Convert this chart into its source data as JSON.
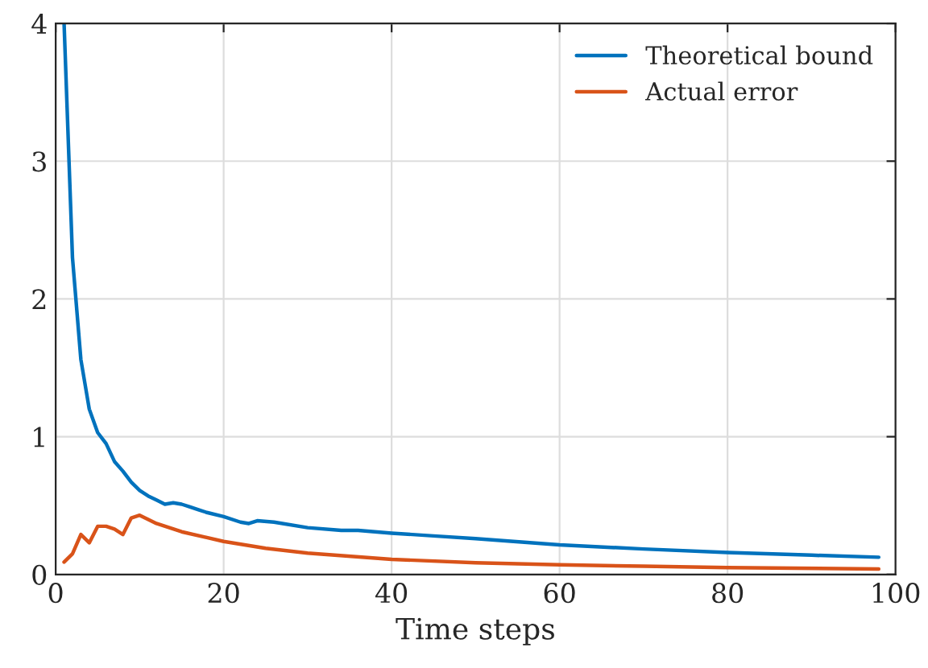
{
  "chart_data": {
    "type": "line",
    "xlabel": "Time steps",
    "xlim": [
      0,
      100
    ],
    "xticks": [
      0,
      20,
      40,
      60,
      80,
      100
    ],
    "ylim": [
      0,
      4
    ],
    "yticks": [
      0,
      1,
      2,
      3,
      4
    ],
    "grid": true,
    "legend": "top right",
    "line_style": "solid",
    "marker": "none",
    "series": [
      {
        "name": "Theoretical bound",
        "color": "#0072bd",
        "x": [
          1,
          2,
          3,
          4,
          5,
          6,
          7,
          8,
          9,
          10,
          11,
          12,
          13,
          14,
          15,
          16,
          17,
          18,
          20,
          22,
          23,
          24,
          26,
          30,
          34,
          36,
          40,
          45,
          50,
          60,
          70,
          80,
          90,
          98
        ],
        "values": [
          4,
          2.3,
          1.56,
          1.2,
          1.03,
          0.95,
          0.82,
          0.75,
          0.67,
          0.61,
          0.57,
          0.54,
          0.51,
          0.52,
          0.51,
          0.49,
          0.47,
          0.45,
          0.42,
          0.38,
          0.37,
          0.39,
          0.38,
          0.34,
          0.32,
          0.32,
          0.3,
          0.28,
          0.26,
          0.215,
          0.185,
          0.16,
          0.14,
          0.125
        ]
      },
      {
        "name": "Actual error",
        "color": "#d95319",
        "x": [
          1,
          2,
          3,
          4,
          5,
          6,
          7,
          8,
          9,
          10,
          12,
          15,
          20,
          25,
          30,
          40,
          50,
          60,
          70,
          80,
          98
        ],
        "values": [
          0.09,
          0.15,
          0.29,
          0.23,
          0.35,
          0.35,
          0.33,
          0.29,
          0.41,
          0.43,
          0.37,
          0.31,
          0.24,
          0.19,
          0.155,
          0.11,
          0.085,
          0.07,
          0.06,
          0.05,
          0.04
        ]
      }
    ]
  }
}
